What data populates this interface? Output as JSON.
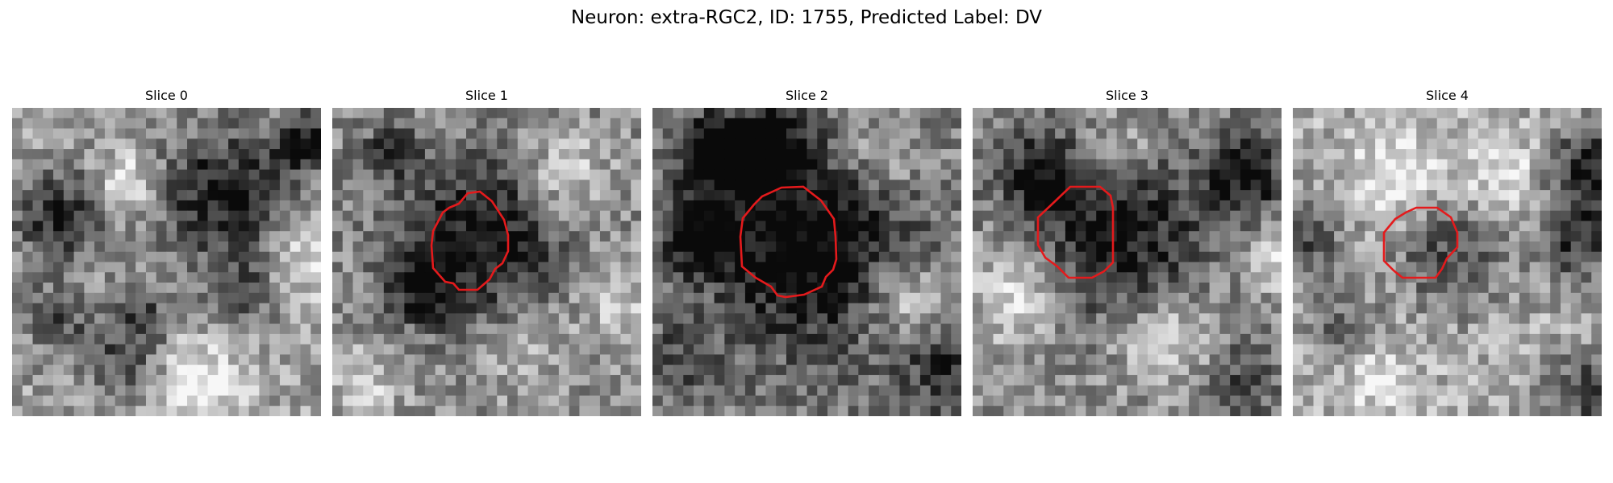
{
  "figure": {
    "title": "Neuron: extra-RGC2, ID: 1755, Predicted Label: DV"
  },
  "colors": {
    "roi_outline": "#e41a1c",
    "background": "#ffffff"
  },
  "panels": [
    {
      "title": "Slice 0",
      "has_roi": false
    },
    {
      "title": "Slice 1",
      "has_roi": true
    },
    {
      "title": "Slice 2",
      "has_roi": true
    },
    {
      "title": "Slice 3",
      "has_roi": true
    },
    {
      "title": "Slice 4",
      "has_roi": true
    }
  ]
}
